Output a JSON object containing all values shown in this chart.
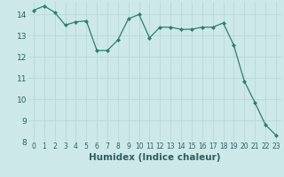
{
  "x": [
    0,
    1,
    2,
    3,
    4,
    5,
    6,
    7,
    8,
    9,
    10,
    11,
    12,
    13,
    14,
    15,
    16,
    17,
    18,
    19,
    20,
    21,
    22,
    23
  ],
  "y": [
    14.2,
    14.4,
    14.1,
    13.5,
    13.65,
    13.7,
    12.3,
    12.3,
    12.8,
    13.8,
    14.0,
    12.9,
    13.4,
    13.4,
    13.3,
    13.3,
    13.4,
    13.4,
    13.6,
    12.55,
    10.85,
    9.85,
    8.8,
    8.3
  ],
  "xlabel": "Humidex (Indice chaleur)",
  "ylim": [
    8,
    14.6
  ],
  "xlim": [
    -0.5,
    23.5
  ],
  "yticks": [
    8,
    9,
    10,
    11,
    12,
    13,
    14
  ],
  "xticks": [
    0,
    1,
    2,
    3,
    4,
    5,
    6,
    7,
    8,
    9,
    10,
    11,
    12,
    13,
    14,
    15,
    16,
    17,
    18,
    19,
    20,
    21,
    22,
    23
  ],
  "line_color": "#2d7f70",
  "marker": "D",
  "marker_size": 2.0,
  "bg_color": "#cce8e8",
  "grid_color": "#b8d8d8",
  "xlabel_fontsize": 7.5,
  "tick_fontsize": 5.5,
  "ytick_fontsize": 6.5
}
